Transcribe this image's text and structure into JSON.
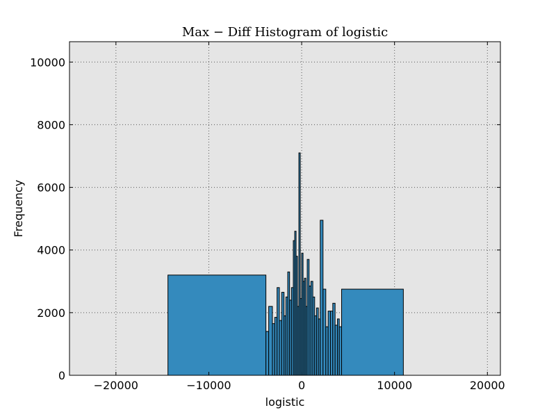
{
  "chart_data": {
    "type": "bar",
    "title": "Max − Diff Histogram of logistic",
    "xlabel": "logistic",
    "ylabel": "Frequency",
    "xlim": [
      -25000,
      21400
    ],
    "ylim": [
      0,
      10650
    ],
    "xticks": [
      -20000,
      -10000,
      0,
      10000,
      20000
    ],
    "xtick_labels": [
      "−20000",
      "−10000",
      "0",
      "10000",
      "20000"
    ],
    "yticks": [
      0,
      2000,
      4000,
      6000,
      8000,
      10000
    ],
    "ytick_labels": [
      "0",
      "2000",
      "4000",
      "6000",
      "8000",
      "10000"
    ],
    "grid": true,
    "colors": {
      "bar_fill": "#348abd",
      "bar_edge": "#000000",
      "plot_bg": "#e5e5e5",
      "grid": "#555555"
    },
    "bins": [
      {
        "x0": -14400,
        "x1": -3850,
        "value": 3200
      },
      {
        "x0": -3850,
        "x1": -3550,
        "value": 1400
      },
      {
        "x0": -3550,
        "x1": -3150,
        "value": 2200
      },
      {
        "x0": -3150,
        "x1": -2900,
        "value": 1650
      },
      {
        "x0": -2900,
        "x1": -2650,
        "value": 1850
      },
      {
        "x0": -2650,
        "x1": -2400,
        "value": 2800
      },
      {
        "x0": -2400,
        "x1": -2150,
        "value": 1750
      },
      {
        "x0": -2150,
        "x1": -1900,
        "value": 2650
      },
      {
        "x0": -1900,
        "x1": -1700,
        "value": 1900
      },
      {
        "x0": -1700,
        "x1": -1500,
        "value": 2500
      },
      {
        "x0": -1500,
        "x1": -1300,
        "value": 3300
      },
      {
        "x0": -1300,
        "x1": -1100,
        "value": 2400
      },
      {
        "x0": -1100,
        "x1": -900,
        "value": 2800
      },
      {
        "x0": -900,
        "x1": -750,
        "value": 4300
      },
      {
        "x0": -750,
        "x1": -600,
        "value": 4600
      },
      {
        "x0": -600,
        "x1": -450,
        "value": 3800
      },
      {
        "x0": -450,
        "x1": -300,
        "value": 2200
      },
      {
        "x0": -300,
        "x1": -150,
        "value": 7100
      },
      {
        "x0": -150,
        "x1": 0,
        "value": 2450
      },
      {
        "x0": 0,
        "x1": 150,
        "value": 3900
      },
      {
        "x0": 150,
        "x1": 300,
        "value": 3000
      },
      {
        "x0": 300,
        "x1": 450,
        "value": 3100
      },
      {
        "x0": 450,
        "x1": 600,
        "value": 2200
      },
      {
        "x0": 600,
        "x1": 800,
        "value": 3700
      },
      {
        "x0": 800,
        "x1": 1000,
        "value": 2850
      },
      {
        "x0": 1000,
        "x1": 1200,
        "value": 3000
      },
      {
        "x0": 1200,
        "x1": 1400,
        "value": 2500
      },
      {
        "x0": 1400,
        "x1": 1600,
        "value": 1900
      },
      {
        "x0": 1600,
        "x1": 1800,
        "value": 2150
      },
      {
        "x0": 1800,
        "x1": 2000,
        "value": 1800
      },
      {
        "x0": 2000,
        "x1": 2300,
        "value": 4950
      },
      {
        "x0": 2300,
        "x1": 2600,
        "value": 2750
      },
      {
        "x0": 2600,
        "x1": 2850,
        "value": 1550
      },
      {
        "x0": 2850,
        "x1": 3100,
        "value": 2050
      },
      {
        "x0": 3100,
        "x1": 3350,
        "value": 2050
      },
      {
        "x0": 3350,
        "x1": 3600,
        "value": 2300
      },
      {
        "x0": 3600,
        "x1": 3850,
        "value": 1600
      },
      {
        "x0": 3850,
        "x1": 4050,
        "value": 1800
      },
      {
        "x0": 4050,
        "x1": 4300,
        "value": 1550
      },
      {
        "x0": 4300,
        "x1": 10950,
        "value": 2750
      }
    ]
  }
}
